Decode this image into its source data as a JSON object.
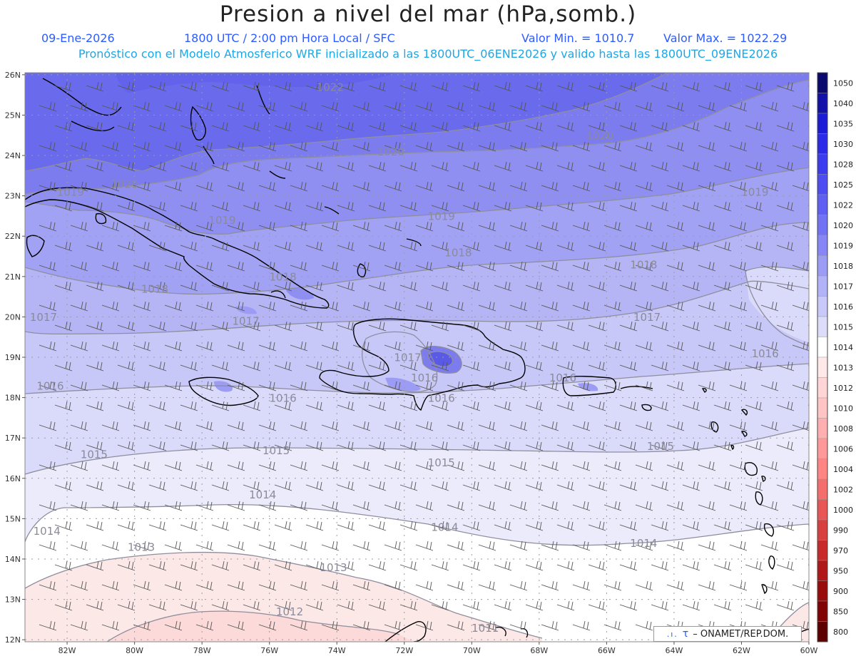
{
  "header": {
    "title": "Presion a nivel del mar (hPa,somb.)",
    "date": "09-Ene-2026",
    "time": "1800 UTC / 2:00 pm Hora Local / SFC",
    "min": "Valor Min. = 1010.7",
    "max": "Valor Max. = 1022.29",
    "model_line": "Pronóstico con el Modelo Atmosferico WRF inicializado a las 1800UTC_06ENE2026 y valido hasta las  1800UTC_09ENE2026"
  },
  "map": {
    "lat_labels": [
      "26N",
      "25N",
      "24N",
      "23N",
      "22N",
      "21N",
      "20N",
      "19N",
      "18N",
      "17N",
      "16N",
      "15N",
      "14N",
      "13N",
      "12N"
    ],
    "lon_labels": [
      "82W",
      "80W",
      "78W",
      "76W",
      "74W",
      "72W",
      "70W",
      "68W",
      "66W",
      "64W",
      "62W",
      "60W"
    ],
    "contour_labels": [
      {
        "text": "1022",
        "lon": -74.2,
        "lat": 25.6
      },
      {
        "text": "1020",
        "lon": -80.3,
        "lat": 23.2
      },
      {
        "text": "1020",
        "lon": -72.4,
        "lat": 24.0
      },
      {
        "text": "1020",
        "lon": -66.2,
        "lat": 24.4
      },
      {
        "text": "1019",
        "lon": -81.9,
        "lat": 23.0
      },
      {
        "text": "1019",
        "lon": -77.4,
        "lat": 22.3
      },
      {
        "text": "1019",
        "lon": -70.9,
        "lat": 22.4
      },
      {
        "text": "1019",
        "lon": -61.6,
        "lat": 23.0
      },
      {
        "text": "1018",
        "lon": -70.4,
        "lat": 21.5
      },
      {
        "text": "1018",
        "lon": -64.9,
        "lat": 21.2
      },
      {
        "text": "1018",
        "lon": -79.4,
        "lat": 20.6
      },
      {
        "text": "1018",
        "lon": -75.6,
        "lat": 20.9
      },
      {
        "text": "1017",
        "lon": -82.7,
        "lat": 19.9
      },
      {
        "text": "1017",
        "lon": -76.7,
        "lat": 19.8
      },
      {
        "text": "1017",
        "lon": -71.9,
        "lat": 18.9
      },
      {
        "text": "1017",
        "lon": -64.8,
        "lat": 19.9
      },
      {
        "text": "1016",
        "lon": -82.5,
        "lat": 18.2
      },
      {
        "text": "1016",
        "lon": -75.6,
        "lat": 17.9
      },
      {
        "text": "1016",
        "lon": -71.4,
        "lat": 18.4
      },
      {
        "text": "1016",
        "lon": -70.9,
        "lat": 17.9
      },
      {
        "text": "1016",
        "lon": -67.3,
        "lat": 18.4
      },
      {
        "text": "1016",
        "lon": -61.3,
        "lat": 19.0
      },
      {
        "text": "1015",
        "lon": -81.2,
        "lat": 16.5
      },
      {
        "text": "1015",
        "lon": -75.8,
        "lat": 16.6
      },
      {
        "text": "1015",
        "lon": -70.9,
        "lat": 16.3
      },
      {
        "text": "1015",
        "lon": -64.4,
        "lat": 16.7
      },
      {
        "text": "1014",
        "lon": -76.2,
        "lat": 15.5
      },
      {
        "text": "1014",
        "lon": -82.6,
        "lat": 14.6
      },
      {
        "text": "1014",
        "lon": -70.8,
        "lat": 14.7
      },
      {
        "text": "1014",
        "lon": -64.9,
        "lat": 14.3
      },
      {
        "text": "1013",
        "lon": -79.8,
        "lat": 14.2
      },
      {
        "text": "1013",
        "lon": -74.1,
        "lat": 13.7
      },
      {
        "text": "1012",
        "lon": -75.4,
        "lat": 12.6
      },
      {
        "text": "1011",
        "lon": -69.6,
        "lat": 12.2
      }
    ]
  },
  "colorbar": {
    "levels": [
      "1050",
      "1040",
      "1035",
      "1030",
      "1028",
      "1025",
      "1022",
      "1020",
      "1019",
      "1018",
      "1017",
      "1016",
      "1015",
      "1014",
      "1013",
      "1012",
      "1010",
      "1008",
      "1006",
      "1004",
      "1002",
      "1000",
      "990",
      "970",
      "950",
      "900",
      "850",
      "800"
    ],
    "colors": [
      "#0a0a6e",
      "#1212a8",
      "#1c1cd6",
      "#2a2ae8",
      "#3b3bef",
      "#4d4df2",
      "#5f5ff4",
      "#7272f5",
      "#8686f6",
      "#9c9cf7",
      "#b2b2f8",
      "#c8c8f9",
      "#dcdcfa",
      "#ffffff",
      "#ffe8e8",
      "#ffd5d5",
      "#ffc4c4",
      "#ffafaf",
      "#ff9999",
      "#ff8484",
      "#f56e6e",
      "#e85656",
      "#d84040",
      "#c82a2a",
      "#b01818",
      "#980c0c",
      "#800404",
      "#5c0000"
    ]
  },
  "credit": {
    "bars": ".ı.",
    "symbol": "τ",
    "text": "– ONAMET/REP.DOM."
  }
}
